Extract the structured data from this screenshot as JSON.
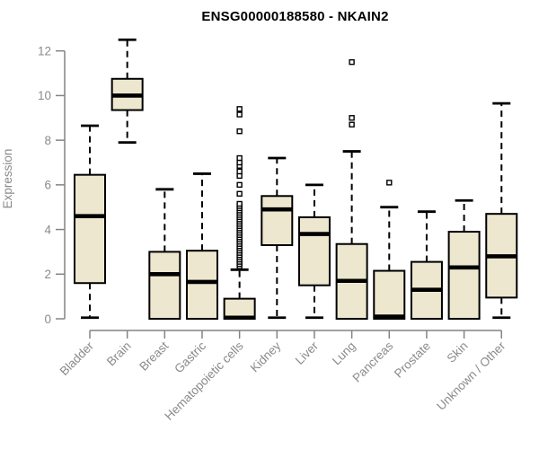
{
  "chart_data": {
    "type": "boxplot",
    "title": "ENSG00000188580 - NKAIN2",
    "ylabel": "Expression",
    "xlabel": "",
    "ylim": [
      0,
      12
    ],
    "yticks": [
      0,
      2,
      4,
      6,
      8,
      10,
      12
    ],
    "grid": false,
    "legend": "none",
    "categories": [
      "Bladder",
      "Brain",
      "Breast",
      "Gastric",
      "Hematopoietic cells",
      "Kidney",
      "Liver",
      "Lung",
      "Pancreas",
      "Prostate",
      "Skin",
      "Unknown / Other"
    ],
    "boxes": [
      {
        "category": "Bladder",
        "low": 0.05,
        "q1": 1.6,
        "median": 4.6,
        "q3": 6.45,
        "high": 8.65,
        "outliers": []
      },
      {
        "category": "Brain",
        "low": 7.9,
        "q1": 9.35,
        "median": 10.0,
        "q3": 10.75,
        "high": 12.5,
        "outliers": []
      },
      {
        "category": "Breast",
        "low": 0.0,
        "q1": 0.0,
        "median": 2.0,
        "q3": 3.0,
        "high": 5.8,
        "outliers": []
      },
      {
        "category": "Gastric",
        "low": 0.0,
        "q1": 0.0,
        "median": 1.65,
        "q3": 3.05,
        "high": 6.5,
        "outliers": []
      },
      {
        "category": "Hematopoietic cells",
        "low": 0.0,
        "q1": 0.0,
        "median": 0.05,
        "q3": 0.9,
        "high": 2.2,
        "outliers": [
          2.35,
          2.45,
          2.55,
          2.65,
          2.75,
          2.85,
          2.95,
          3.05,
          3.15,
          3.25,
          3.35,
          3.45,
          3.55,
          3.65,
          3.75,
          3.85,
          3.95,
          4.05,
          4.15,
          4.25,
          4.35,
          4.45,
          4.55,
          4.65,
          4.75,
          4.85,
          4.95,
          5.05,
          5.15,
          5.6,
          6.0,
          6.4,
          6.6,
          6.85,
          7.0,
          7.2,
          8.4,
          9.15,
          9.4
        ]
      },
      {
        "category": "Kidney",
        "low": 0.05,
        "q1": 3.3,
        "median": 4.9,
        "q3": 5.5,
        "high": 7.2,
        "outliers": []
      },
      {
        "category": "Liver",
        "low": 0.05,
        "q1": 1.5,
        "median": 3.8,
        "q3": 4.55,
        "high": 6.0,
        "outliers": []
      },
      {
        "category": "Lung",
        "low": 0.0,
        "q1": 0.0,
        "median": 1.7,
        "q3": 3.35,
        "high": 7.5,
        "outliers": [
          8.7,
          9.0,
          11.5
        ]
      },
      {
        "category": "Pancreas",
        "low": 0.0,
        "q1": 0.0,
        "median": 0.1,
        "q3": 2.15,
        "high": 5.0,
        "outliers": [
          6.1
        ]
      },
      {
        "category": "Prostate",
        "low": 0.0,
        "q1": 0.0,
        "median": 1.3,
        "q3": 2.55,
        "high": 4.8,
        "outliers": []
      },
      {
        "category": "Skin",
        "low": 0.0,
        "q1": 0.0,
        "median": 2.3,
        "q3": 3.9,
        "high": 5.3,
        "outliers": []
      },
      {
        "category": "Unknown / Other",
        "low": 0.05,
        "q1": 0.95,
        "median": 2.8,
        "q3": 4.7,
        "high": 9.65,
        "outliers": []
      }
    ]
  },
  "colors": {
    "background": "#ffffff",
    "box_fill": "#ede7cf",
    "box_stroke": "#000000",
    "median_stroke": "#000000",
    "whisker_stroke": "#000000",
    "outlier_fill": "#ffffff",
    "outlier_stroke": "#000000",
    "axis_line": "#848484",
    "axis_text": "#8a8a8a",
    "title_text": "#000000"
  }
}
